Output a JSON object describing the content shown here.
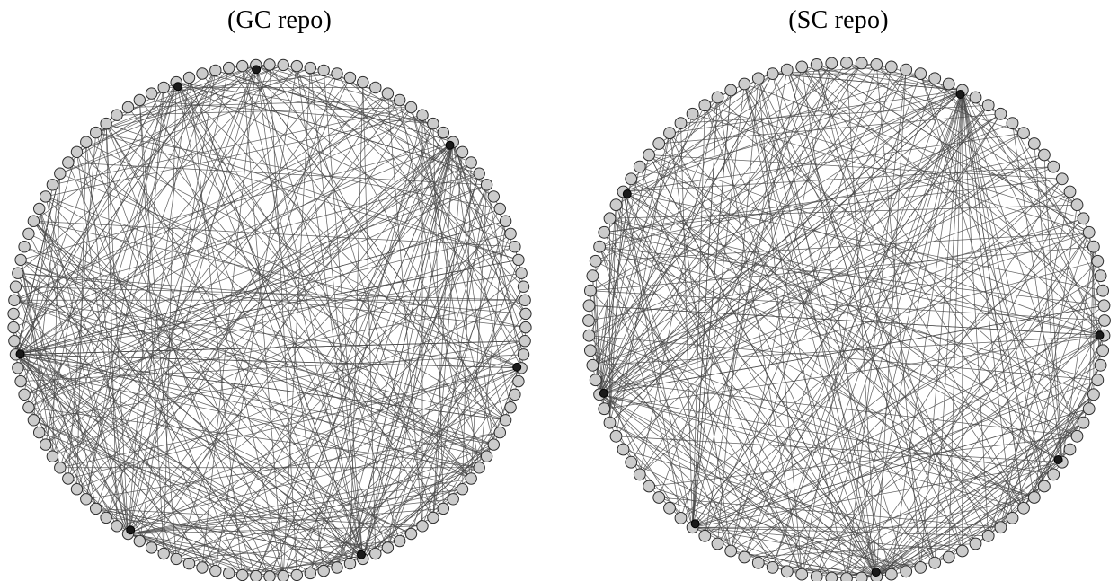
{
  "figure": {
    "panels": [
      {
        "id": "gc",
        "caption": "(GC repo)"
      },
      {
        "id": "sc",
        "caption": "(SC repo)"
      }
    ]
  },
  "colors": {
    "node_fill": "#cccccc",
    "node_stroke": "#2b2b2b",
    "edge": "#4a4a4a",
    "hub": "#1a1a1a"
  }
}
